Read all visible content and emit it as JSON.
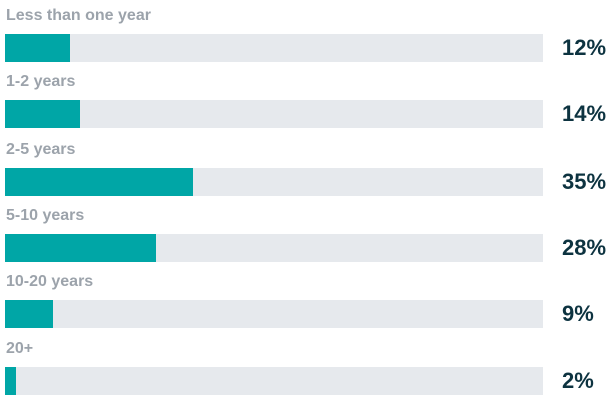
{
  "chart_data": {
    "type": "bar",
    "orientation": "horizontal",
    "categories": [
      "Less than one year",
      "1-2 years",
      "2-5 years",
      "5-10 years",
      "10-20 years",
      "20+"
    ],
    "values": [
      12,
      14,
      35,
      28,
      9,
      2
    ],
    "value_labels": [
      "12%",
      "14%",
      "35%",
      "28%",
      "9%",
      "2%"
    ],
    "xlim": [
      0,
      100
    ],
    "unit": "%",
    "grid": false,
    "colors": {
      "bar": "#00a6a6",
      "track": "#e6e9ed",
      "category_text": "#9ca3ab",
      "value_text": "#0d3340"
    }
  }
}
